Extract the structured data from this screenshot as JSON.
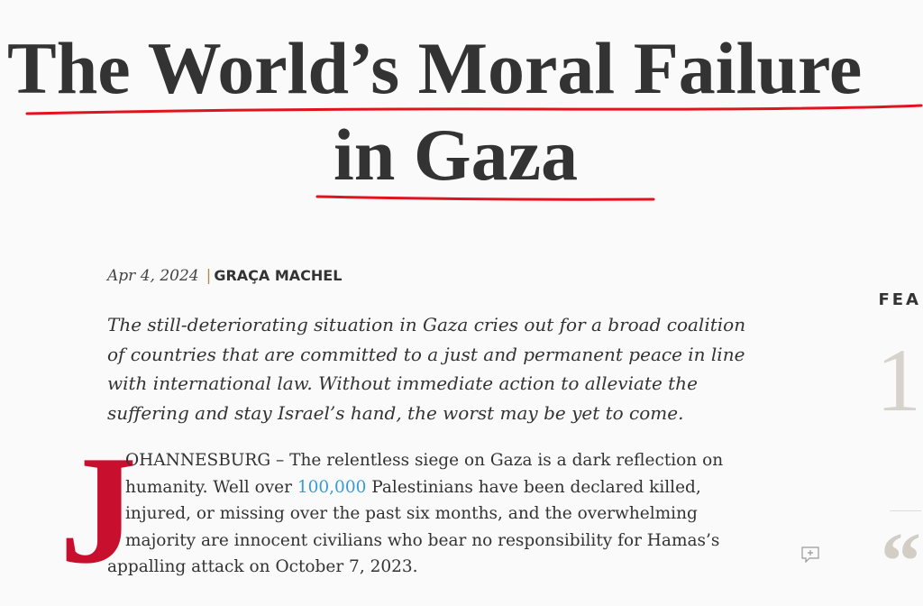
{
  "article": {
    "title_line1": "The World’s Moral Failure",
    "title_line2": "in Gaza",
    "date": "Apr 4, 2024",
    "separator": "|",
    "author": "GRAÇA MACHEL",
    "dek_lines": [
      "The still-deteriorating situation in Gaza cries out for a broad coalition",
      "of countries that are committed to a just and permanent peace in line",
      "with international law. Without immediate action to alleviate the",
      "suffering and stay Israel’s hand, the worst may be yet to come."
    ],
    "drop_cap": "J",
    "body": {
      "line1": "OHANNESBURG – The relentless siege on Gaza is a dark reflection on",
      "line2_pre": "humanity. Well over ",
      "line2_link": "100,000",
      "line2_post": " Palestinians have been declared killed,",
      "line3": "injured, or missing over the past six months, and the overwhelming",
      "line4": "majority are innocent civilians who bear no responsibility for Hamas’s",
      "line5": "appalling attack on October 7, 2023."
    }
  },
  "sidebar": {
    "label": "FEA",
    "number": "1",
    "quote_glyph": "“"
  },
  "colors": {
    "underline": "#e0141e",
    "drop_cap": "#c8102e",
    "link": "#3a9ad9"
  },
  "icons": {
    "comment": "comment-add-icon"
  }
}
